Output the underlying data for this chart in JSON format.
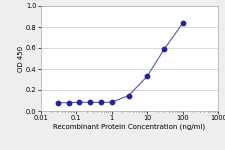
{
  "x": [
    0.031,
    0.063,
    0.125,
    0.25,
    0.5,
    1.0,
    3.0,
    10.0,
    30.0,
    100.0
  ],
  "y": [
    0.079,
    0.079,
    0.083,
    0.083,
    0.083,
    0.083,
    0.147,
    0.33,
    0.588,
    0.836
  ],
  "line_color": "#5555aa",
  "marker_color": "#2222aa",
  "marker_size": 10,
  "xlabel": "Recombinant Protein Concentration (ng/ml)",
  "ylabel": "OD 450",
  "xlim": [
    0.01,
    1000
  ],
  "ylim": [
    0.0,
    1.0
  ],
  "yticks": [
    0.0,
    0.2,
    0.4,
    0.6,
    0.8,
    1.0
  ],
  "xtick_vals": [
    0.01,
    0.1,
    1,
    10,
    100,
    1000
  ],
  "background_color": "#eeeeee",
  "plot_bg_color": "#ffffff",
  "grid_color": "#cccccc",
  "axis_fontsize": 5.0,
  "tick_fontsize": 4.8,
  "linewidth": 0.8
}
